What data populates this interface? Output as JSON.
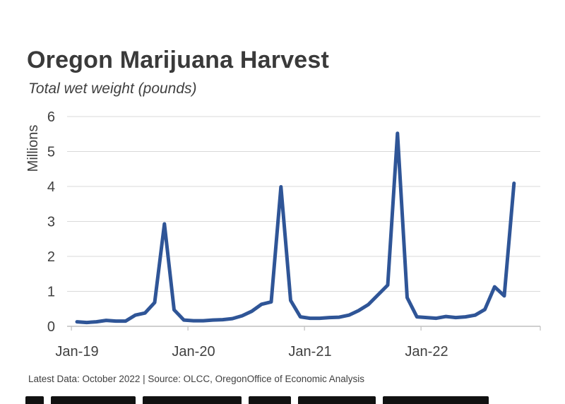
{
  "title": "Oregon Marijuana Harvest",
  "subtitle": "Total wet weight (pounds)",
  "footer": "Latest Data: October 2022 | Source: OLCC, OregonOffice of Economic Analysis",
  "colors": {
    "line": "#2f5597",
    "grid": "#d9d9d9",
    "axis": "#bfbfbf",
    "text": "#404040"
  },
  "chart_data": {
    "type": "line",
    "title": "Oregon Marijuana Harvest",
    "subtitle": "Total wet weight (pounds)",
    "ylabel": "Millions",
    "xlabel": "",
    "ylim": [
      0,
      6
    ],
    "yticks": [
      0,
      1,
      2,
      3,
      4,
      5,
      6
    ],
    "xtick_labels": [
      "Jan-19",
      "Jan-20",
      "Jan-21",
      "Jan-22"
    ],
    "grid": true,
    "series": [
      {
        "x": [
          "Jan-19",
          "Feb-19",
          "Mar-19",
          "Apr-19",
          "May-19",
          "Jun-19",
          "Jul-19",
          "Aug-19",
          "Sep-19",
          "Oct-19",
          "Nov-19",
          "Dec-19",
          "Jan-20",
          "Feb-20",
          "Mar-20",
          "Apr-20",
          "May-20",
          "Jun-20",
          "Jul-20",
          "Aug-20",
          "Sep-20",
          "Oct-20",
          "Nov-20",
          "Dec-20",
          "Jan-21",
          "Feb-21",
          "Mar-21",
          "Apr-21",
          "May-21",
          "Jun-21",
          "Jul-21",
          "Aug-21",
          "Sep-21",
          "Oct-21",
          "Nov-21",
          "Dec-21",
          "Jan-22",
          "Feb-22",
          "Mar-22",
          "Apr-22",
          "May-22",
          "Jun-22",
          "Jul-22",
          "Aug-22",
          "Sep-22",
          "Oct-22"
        ],
        "values": [
          0.13,
          0.11,
          0.13,
          0.17,
          0.15,
          0.15,
          0.32,
          0.38,
          0.68,
          2.93,
          0.47,
          0.18,
          0.16,
          0.16,
          0.18,
          0.19,
          0.22,
          0.3,
          0.43,
          0.63,
          0.7,
          3.99,
          0.74,
          0.27,
          0.23,
          0.23,
          0.25,
          0.26,
          0.32,
          0.45,
          0.62,
          0.9,
          1.18,
          5.52,
          0.82,
          0.27,
          0.25,
          0.23,
          0.28,
          0.25,
          0.27,
          0.32,
          0.48,
          1.13,
          0.87,
          4.09
        ]
      }
    ]
  }
}
